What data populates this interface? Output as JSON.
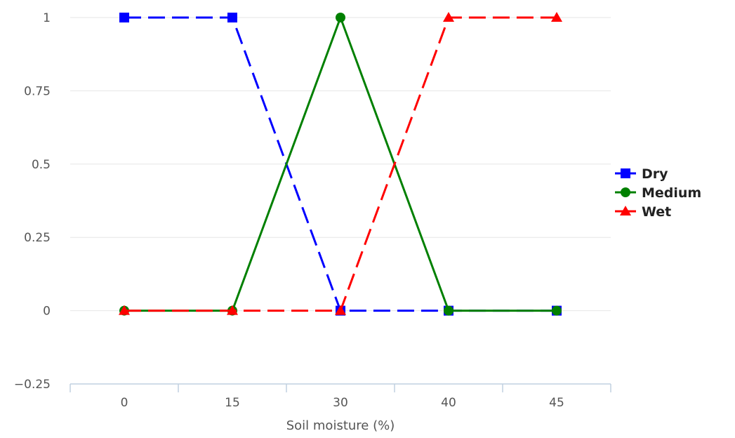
{
  "chart_data": {
    "type": "line",
    "title": "",
    "xlabel": "Soil moisture (%)",
    "ylabel": "",
    "categories": [
      "0",
      "15",
      "30",
      "40",
      "45"
    ],
    "yticks": [
      "−0.25",
      "0",
      "0.25",
      "0.5",
      "0.75",
      "1"
    ],
    "ylim": [
      -0.25,
      1
    ],
    "grid": true,
    "legend_position": "right",
    "series": [
      {
        "name": "Dry",
        "values": [
          1,
          1,
          0,
          0,
          0
        ],
        "color": "#0000ff",
        "dash": "dashed",
        "marker": "square"
      },
      {
        "name": "Medium",
        "values": [
          0,
          0,
          1,
          0,
          0
        ],
        "color": "#008000",
        "dash": "solid",
        "marker": "circle"
      },
      {
        "name": "Wet",
        "values": [
          0,
          0,
          0,
          1,
          1
        ],
        "color": "#ff0000",
        "dash": "dashed",
        "marker": "triangle"
      }
    ]
  }
}
